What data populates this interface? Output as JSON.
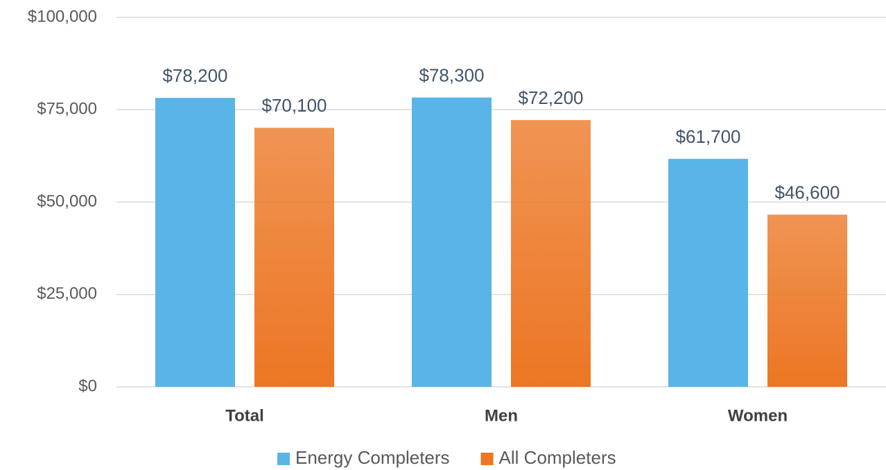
{
  "chart_data": {
    "type": "bar",
    "categories": [
      "Total",
      "Men",
      "Women"
    ],
    "series": [
      {
        "name": "Energy Completers",
        "color": "#59b5e7",
        "values": [
          78200,
          78300,
          61700
        ],
        "value_labels": [
          "$78,200",
          "$78,300",
          "$61,700"
        ]
      },
      {
        "name": "All Completers",
        "color": "#ec7623",
        "values": [
          70100,
          72200,
          46600
        ],
        "value_labels": [
          "$70,100",
          "$72,200",
          "$46,600"
        ]
      }
    ],
    "ylim": [
      0,
      100000
    ],
    "yticks": [
      {
        "value": 0,
        "label": "$0"
      },
      {
        "value": 25000,
        "label": "$25,000"
      },
      {
        "value": 50000,
        "label": "$50,000"
      },
      {
        "value": 75000,
        "label": "$75,000"
      },
      {
        "value": 100000,
        "label": "$100,000"
      }
    ],
    "grid": true,
    "legend": "bottom"
  }
}
